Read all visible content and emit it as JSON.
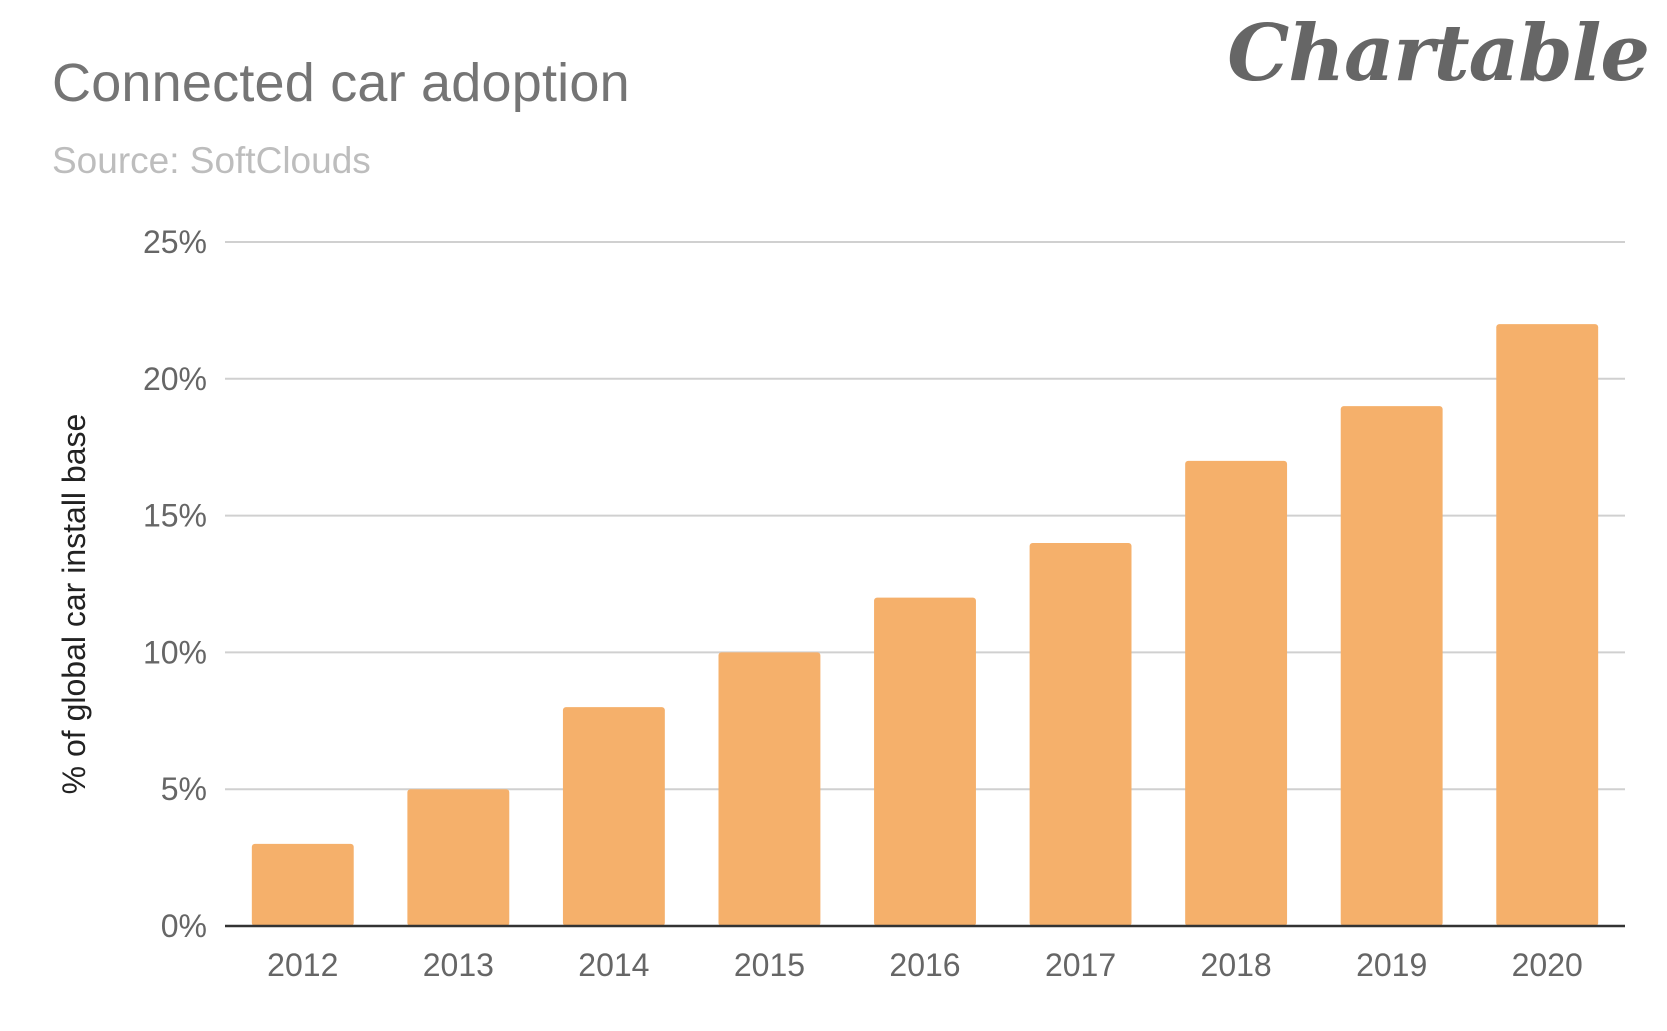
{
  "header": {
    "title": "Connected car adoption",
    "subtitle": "Source: SoftClouds",
    "brand": "Chartable"
  },
  "colors": {
    "bar": "#f5b06b",
    "grid": "#d0d0d0",
    "baseline": "#333333",
    "title": "#757575",
    "subtitle": "#bdbdbd"
  },
  "chart_data": {
    "type": "bar",
    "title": "Connected car adoption",
    "subtitle": "Source: SoftClouds",
    "xlabel": "",
    "ylabel": "% of global car install base",
    "categories": [
      "2012",
      "2013",
      "2014",
      "2015",
      "2016",
      "2017",
      "2018",
      "2019",
      "2020"
    ],
    "values": [
      3,
      5,
      8,
      10,
      12,
      14,
      17,
      19,
      22
    ],
    "unit": "%",
    "ylim": [
      0,
      25
    ],
    "yticks": [
      0,
      5,
      10,
      15,
      20,
      25
    ],
    "ytick_labels": [
      "0%",
      "5%",
      "10%",
      "15%",
      "20%",
      "25%"
    ],
    "grid": true,
    "legend": "none"
  }
}
